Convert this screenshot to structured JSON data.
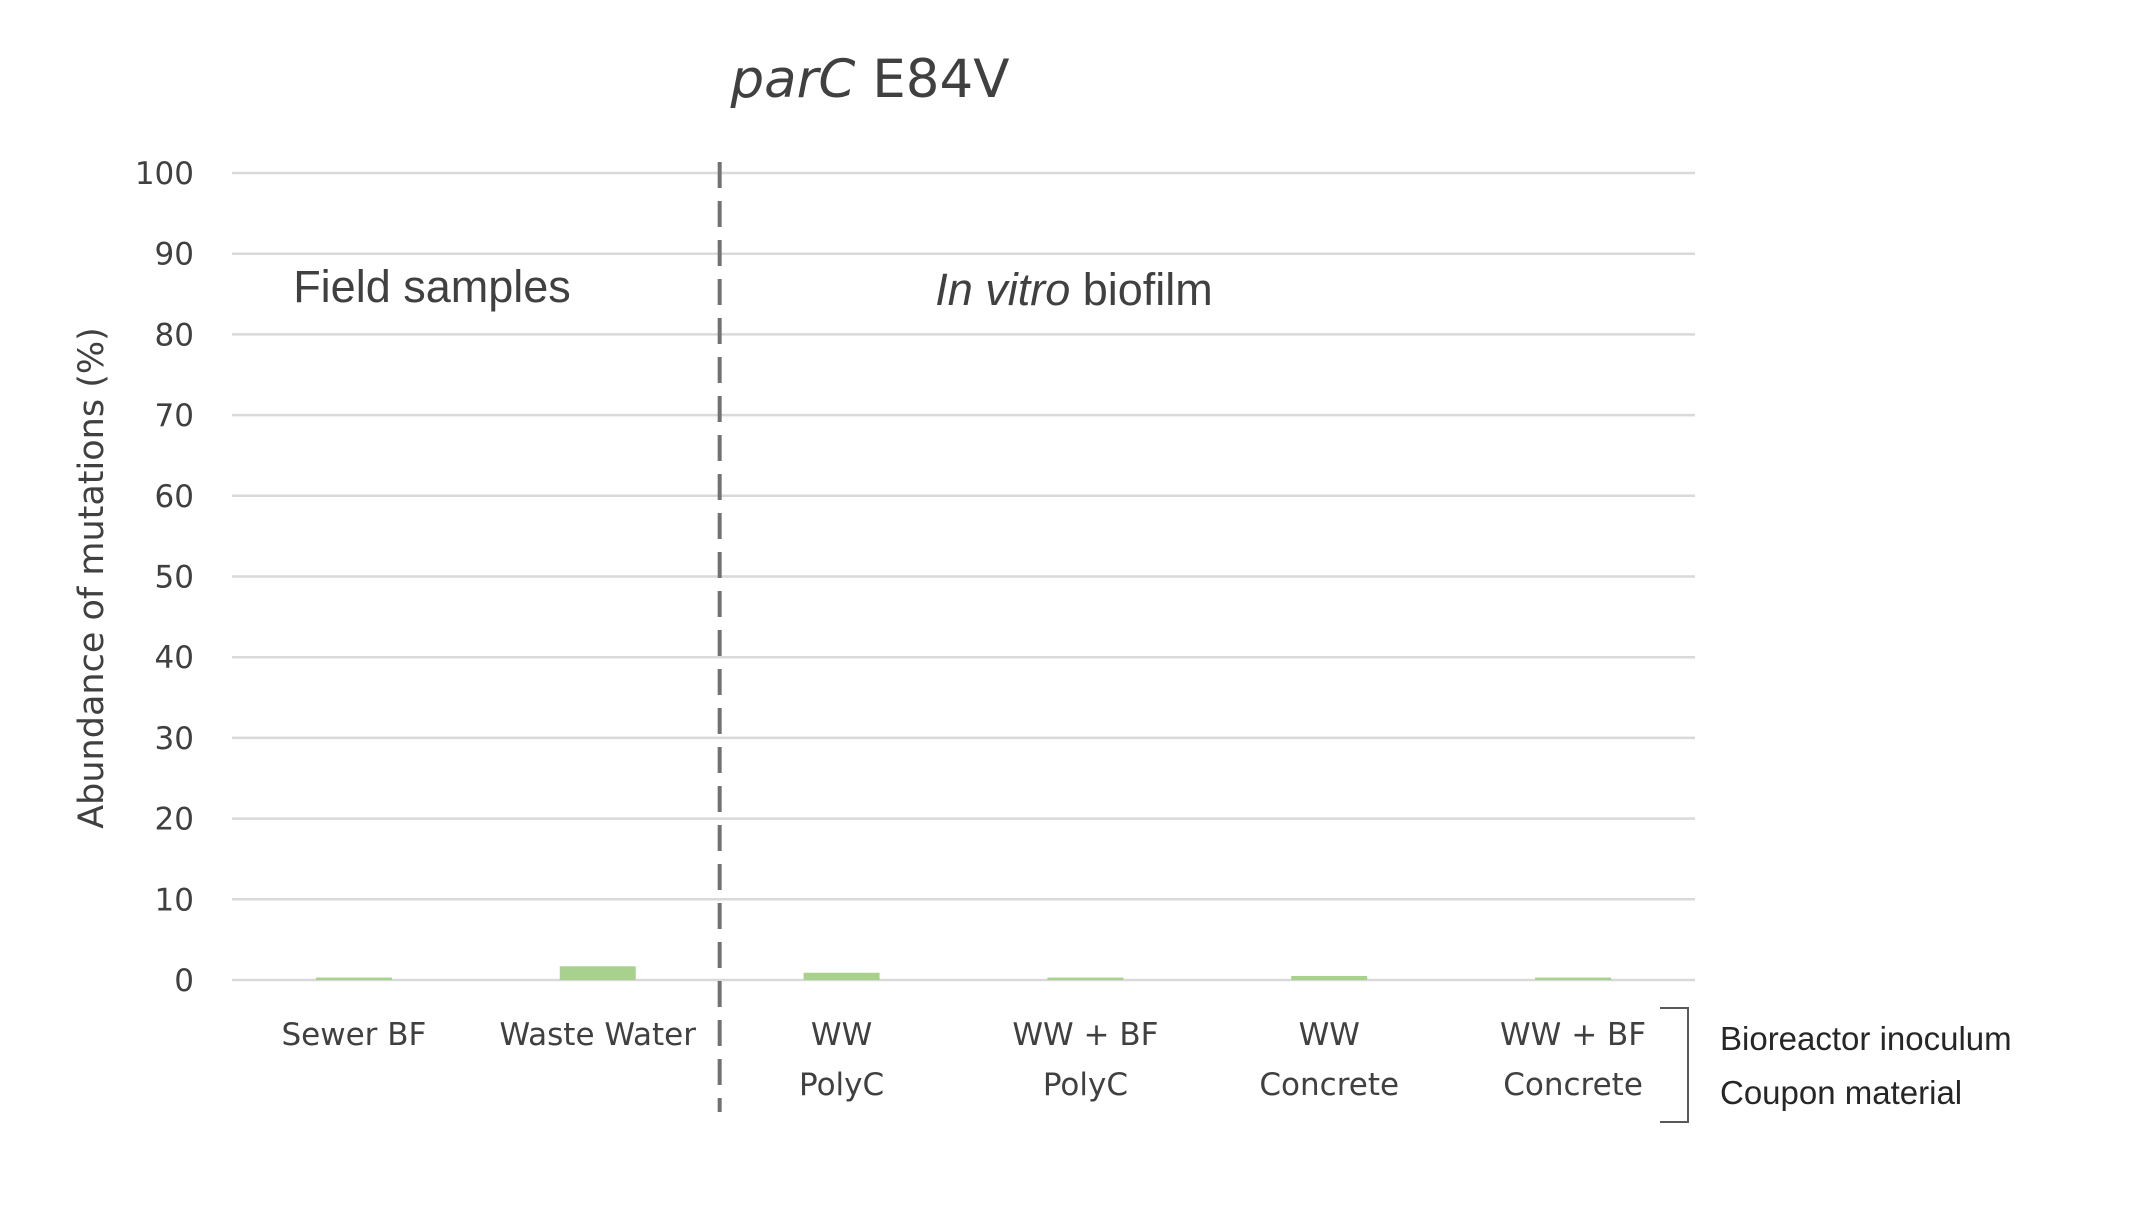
{
  "chart_data": {
    "type": "bar",
    "title_italic": "parC",
    "title_rest": " E84V",
    "ylabel": "Abundance of mutations (%)",
    "xlabel": "",
    "ylim": [
      0,
      100
    ],
    "yticks": [
      0,
      10,
      20,
      30,
      40,
      50,
      60,
      70,
      80,
      90,
      100
    ],
    "grid": true,
    "categories": [
      {
        "lines": [
          "Sewer BF"
        ]
      },
      {
        "lines": [
          "Waste Water"
        ]
      },
      {
        "lines": [
          "WW",
          "PolyC"
        ]
      },
      {
        "lines": [
          "WW + BF",
          "PolyC"
        ]
      },
      {
        "lines": [
          "WW",
          "Concrete"
        ]
      },
      {
        "lines": [
          "WW + BF",
          "Concrete"
        ]
      }
    ],
    "series": [
      {
        "values": [
          0.3,
          1.7,
          0.9,
          0.3,
          0.5,
          0.3
        ],
        "color": "#a9d18e"
      }
    ],
    "divider_after_category": 2,
    "regions": [
      {
        "text_rest": "Field samples",
        "text_italic": ""
      },
      {
        "text_italic": "In vitro",
        "text_rest": " biofilm"
      }
    ],
    "bracket_legend": [
      "Bioreactor inoculum",
      "Coupon material"
    ],
    "colors": {
      "text": "#404040",
      "grid": "#d9d9d9",
      "divider": "#767171",
      "bar": "#a9d18e"
    }
  }
}
